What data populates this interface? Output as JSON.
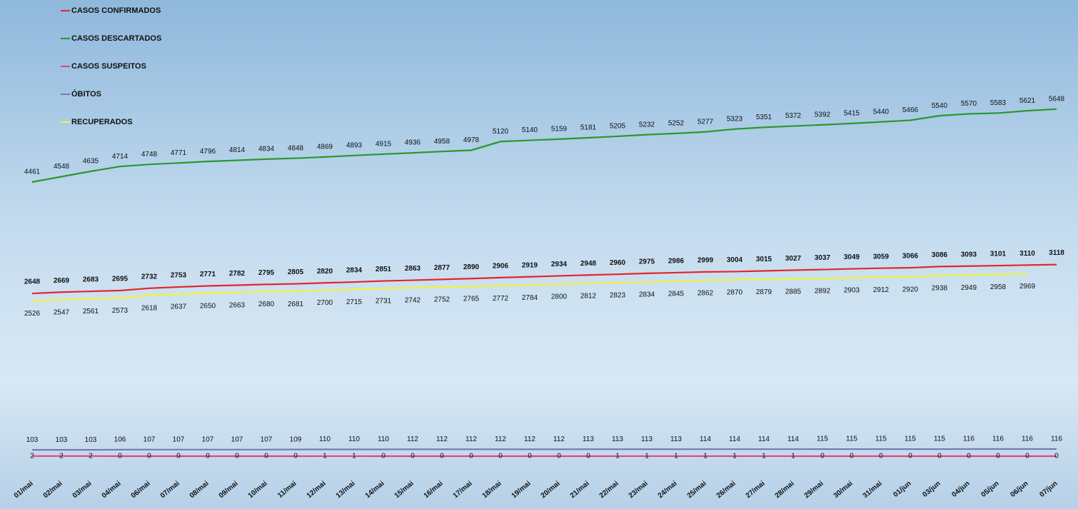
{
  "chart_data": {
    "type": "line",
    "categories": [
      "01/mai",
      "02/mai",
      "03/mai",
      "04/mai",
      "06/mai",
      "07/mai",
      "08/mai",
      "09/mai",
      "10/mai",
      "11/mai",
      "12/mai",
      "13/mai",
      "14/mai",
      "15/mai",
      "16/mai",
      "17/mai",
      "18/mai",
      "19/mai",
      "20/mai",
      "21/mai",
      "22/mai",
      "23/mai",
      "24/mai",
      "25/mai",
      "26/mai",
      "27/mai",
      "28/mai",
      "29/mai",
      "30/mai",
      "31/mai",
      "01/jun",
      "03/jun",
      "04/jun",
      "05/jun",
      "06/jun",
      "07/jun"
    ],
    "ylim": [
      0,
      7400
    ],
    "series": [
      {
        "name": "CASOS CONFIRMADOS",
        "color": "#e3262b",
        "values": [
          2648,
          2669,
          2683,
          2695,
          2732,
          2753,
          2771,
          2782,
          2795,
          2805,
          2820,
          2834,
          2851,
          2863,
          2877,
          2890,
          2906,
          2919,
          2934,
          2948,
          2960,
          2975,
          2986,
          2999,
          3004,
          3015,
          3027,
          3037,
          3049,
          3059,
          3066,
          3086,
          3093,
          3101,
          3110,
          3118
        ]
      },
      {
        "name": "CASOS DESCARTADOS",
        "color": "#2a982c",
        "values": [
          4461,
          4548,
          4635,
          4714,
          4748,
          4771,
          4796,
          4814,
          4834,
          4848,
          4869,
          4893,
          4915,
          4936,
          4958,
          4978,
          5120,
          5140,
          5159,
          5181,
          5205,
          5232,
          5252,
          5277,
          5323,
          5351,
          5372,
          5392,
          5415,
          5440,
          5466,
          5540,
          5570,
          5583,
          5621,
          5648
        ]
      },
      {
        "name": "CASOS SUSPEITOS",
        "color": "#e2447e",
        "values": [
          2,
          2,
          2,
          0,
          0,
          0,
          0,
          0,
          0,
          0,
          1,
          1,
          0,
          0,
          0,
          0,
          0,
          0,
          0,
          0,
          1,
          1,
          1,
          1,
          1,
          1,
          1,
          0,
          0,
          0,
          0,
          0,
          0,
          0,
          0,
          0
        ]
      },
      {
        "name": "ÓBITOS",
        "color": "#7b78b8",
        "values": [
          103,
          103,
          103,
          106,
          107,
          107,
          107,
          107,
          107,
          109,
          110,
          110,
          110,
          112,
          112,
          112,
          112,
          112,
          112,
          113,
          113,
          113,
          113,
          114,
          114,
          114,
          114,
          115,
          115,
          115,
          115,
          115,
          116,
          116,
          116,
          116
        ]
      },
      {
        "name": "RECUPERADOS",
        "color": "#f2f23a",
        "values": [
          2526,
          2547,
          2561,
          2573,
          2618,
          2637,
          2650,
          2663,
          2680,
          2681,
          2700,
          2715,
          2731,
          2742,
          2752,
          2765,
          2772,
          2784,
          2800,
          2812,
          2823,
          2834,
          2845,
          2862,
          2870,
          2879,
          2885,
          2892,
          2903,
          2912,
          2920,
          2938,
          2949,
          2958,
          2969,
          null
        ]
      }
    ]
  }
}
